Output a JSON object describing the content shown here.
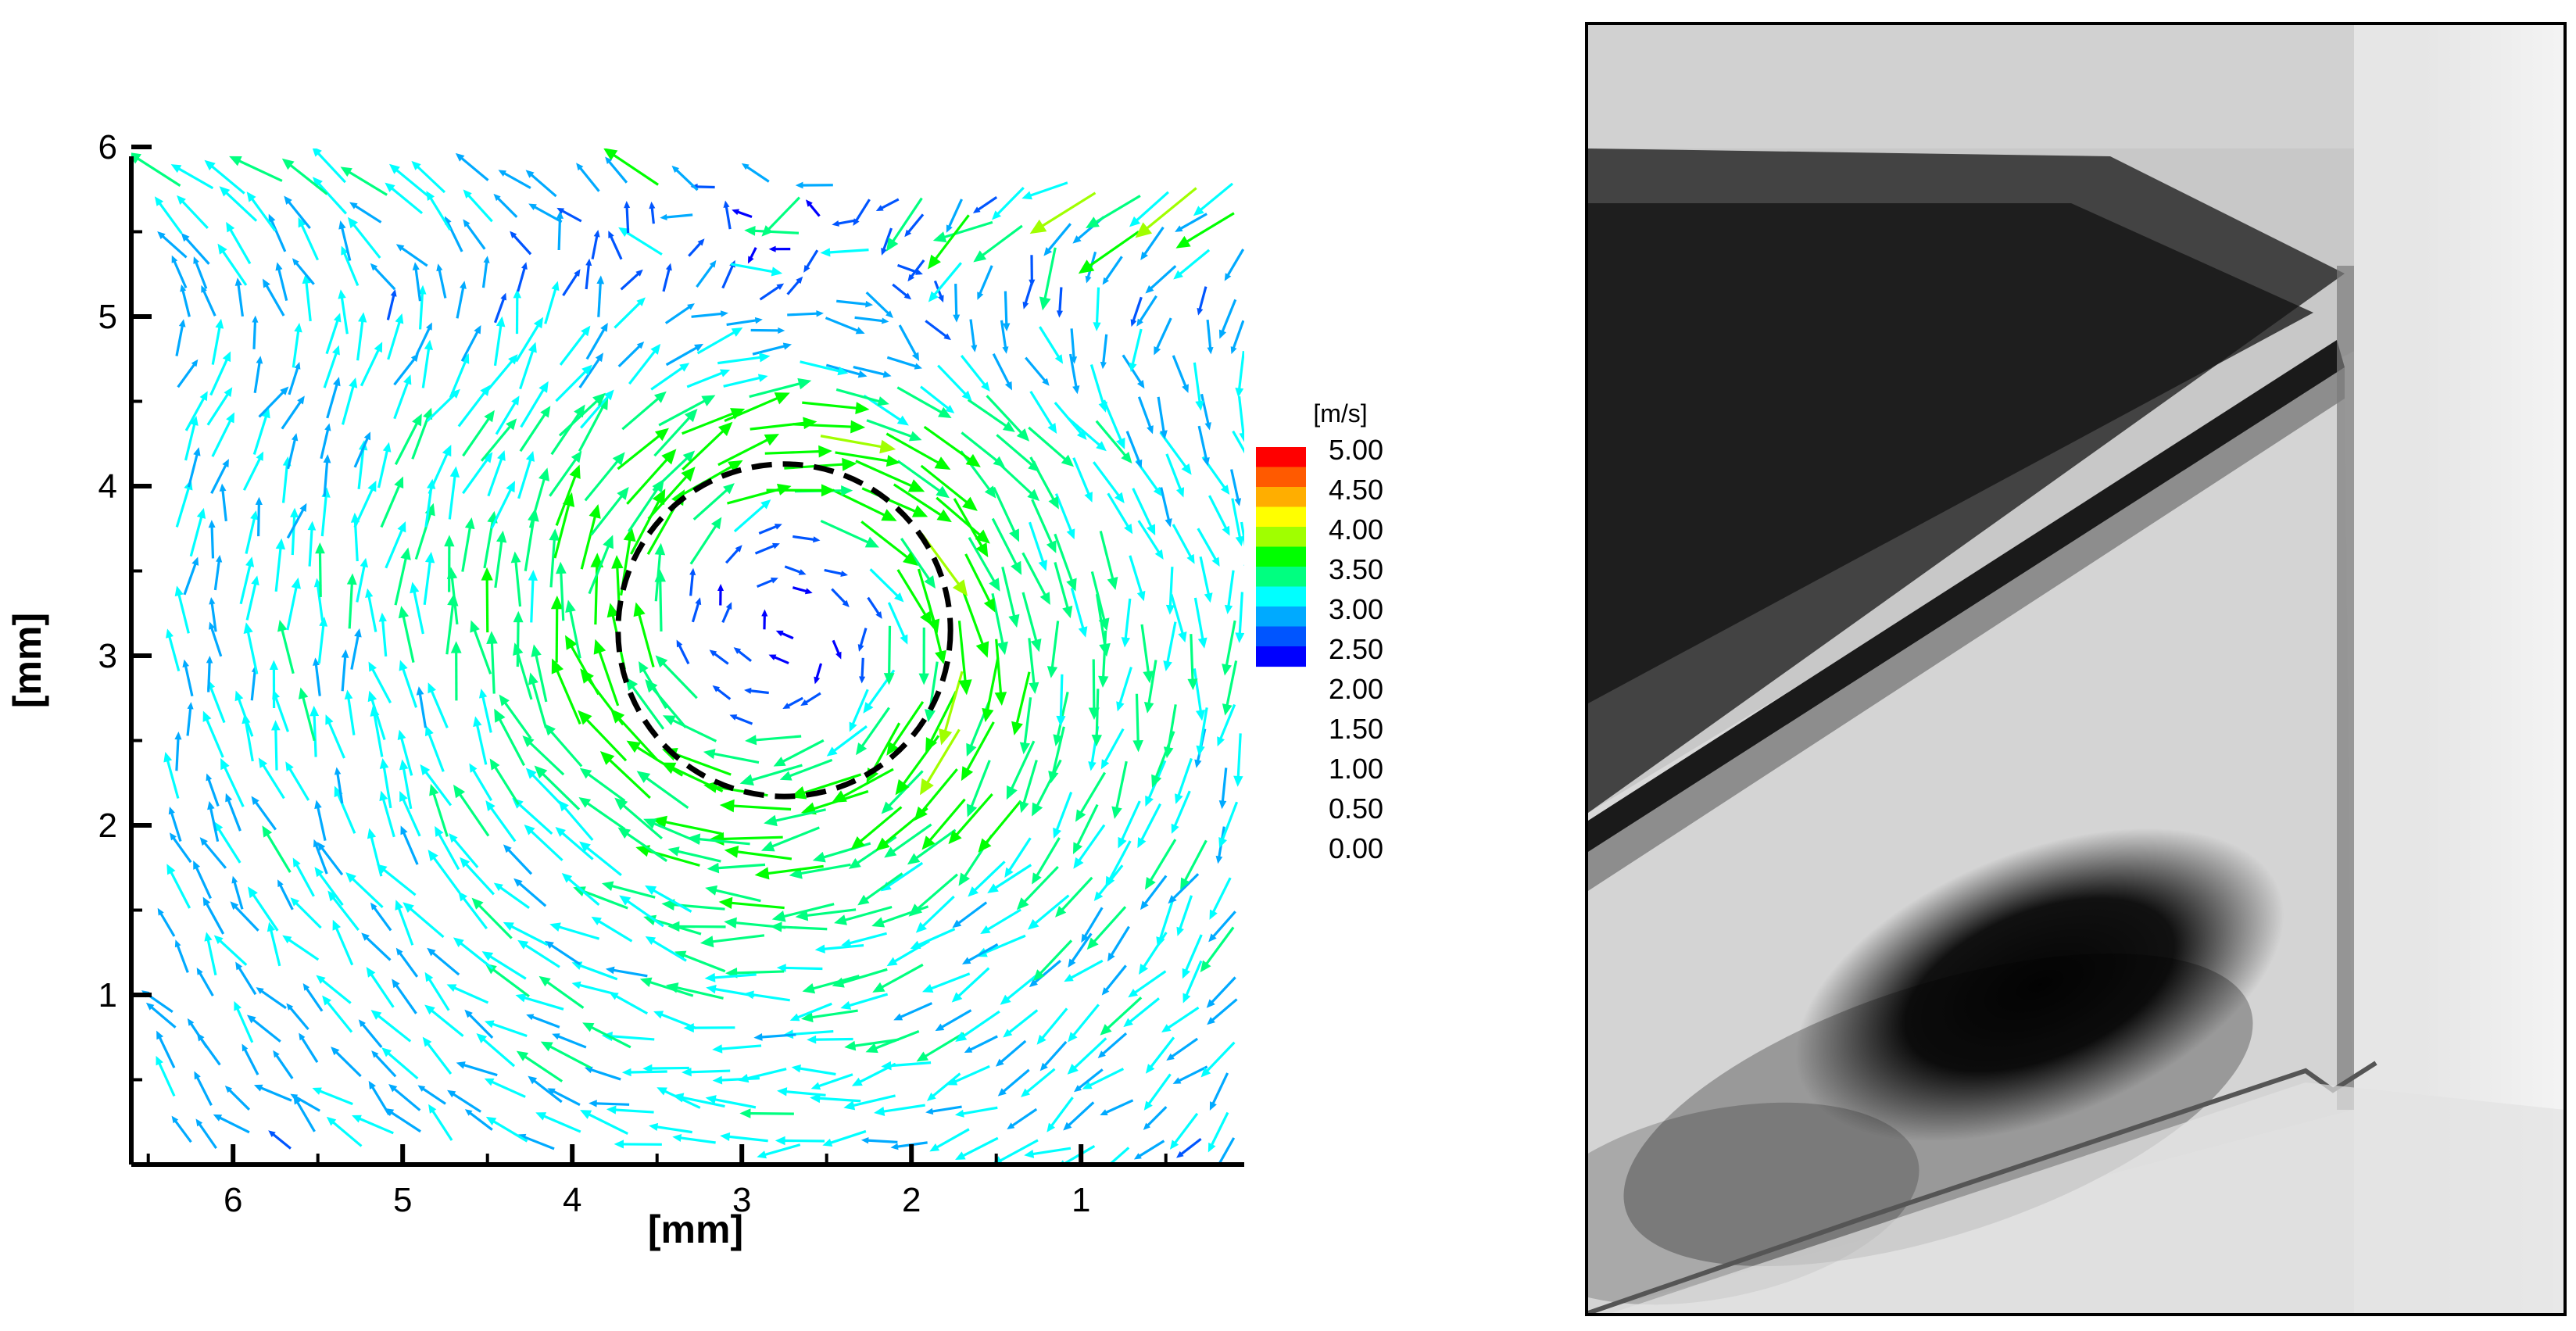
{
  "chart_data": [
    {
      "type": "vector-field",
      "xlabel": "[mm]",
      "ylabel": "[mm]",
      "xlim": [
        6.6,
        0
      ],
      "ylim": [
        0,
        6
      ],
      "x_reversed": true,
      "x_ticks": [
        6,
        5,
        4,
        3,
        2,
        1
      ],
      "y_ticks": [
        1,
        2,
        3,
        4,
        5,
        6
      ],
      "tick_labels_x": [
        "6",
        "5",
        "4",
        "3",
        "2",
        "1"
      ],
      "tick_labels_y": [
        "1",
        "2",
        "3",
        "4",
        "5",
        "6"
      ],
      "vortex_circle": {
        "center": [
          2.75,
          3.15
        ],
        "radius": 0.98,
        "style": "dashed"
      },
      "legend": {
        "title": "[m/s]",
        "placement": "right",
        "levels": [
          "5.00",
          "4.50",
          "4.00",
          "3.50",
          "3.00",
          "2.50",
          "2.00",
          "1.50",
          "1.00",
          "0.50",
          "0.00"
        ],
        "colors": [
          "#ff0000",
          "#ff5a00",
          "#ffae00",
          "#ffff00",
          "#a0ff00",
          "#00ff00",
          "#00ff80",
          "#00ffff",
          "#00aaff",
          "#0055ff",
          "#0000ff"
        ]
      },
      "vortex_model": {
        "center": [
          2.75,
          3.15
        ],
        "circulation_speed": 2.6,
        "core_radius": 1.0
      },
      "grid": false
    },
    {
      "type": "image",
      "description_visible": "",
      "grid": false
    }
  ]
}
